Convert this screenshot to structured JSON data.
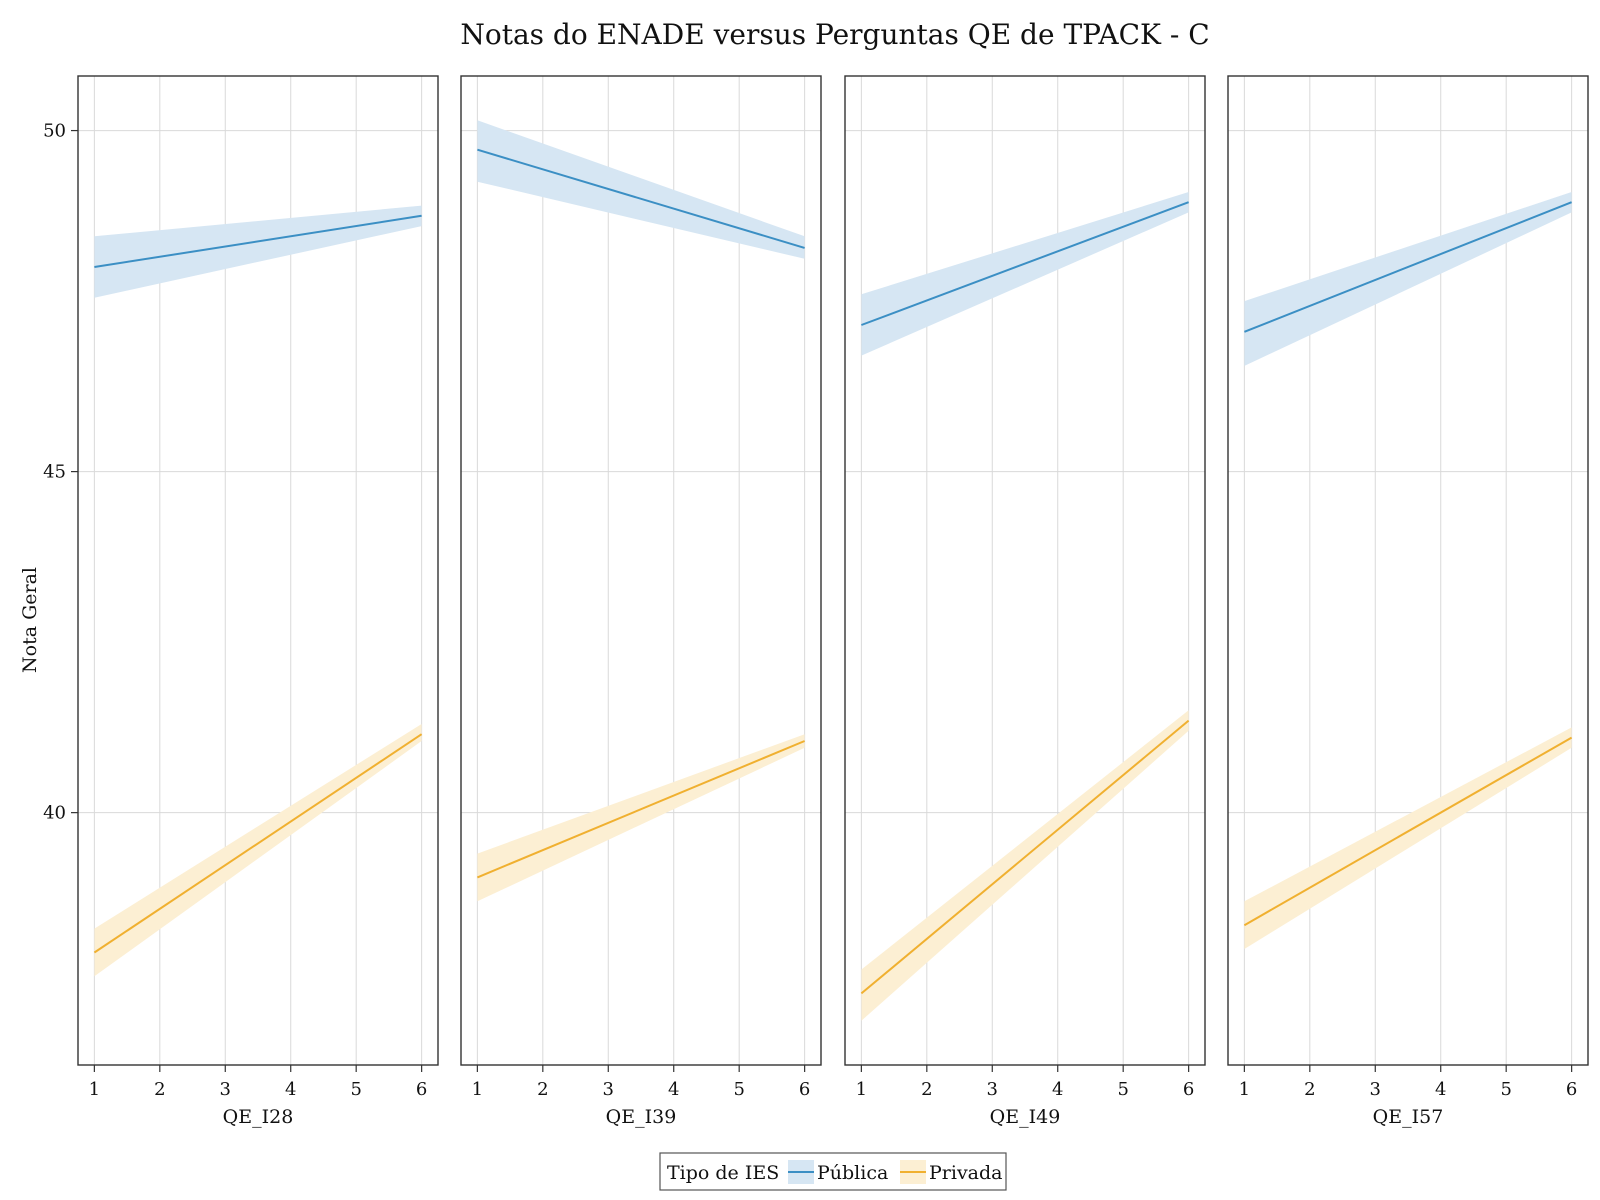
{
  "chart_data": {
    "type": "line",
    "title": "Notas do ENADE versus Perguntas QE de TPACK - C",
    "ylabel": "Nota Geral",
    "ylim": [
      36.3,
      50.8
    ],
    "yticks": [
      40,
      45,
      50
    ],
    "xlim": [
      0.75,
      6.25
    ],
    "xticks": [
      1,
      2,
      3,
      4,
      5,
      6
    ],
    "grid": true,
    "legend": {
      "title": "Tipo de IES",
      "placement": "bottom-center",
      "entries": [
        "Pública",
        "Privada"
      ]
    },
    "colors": {
      "Pública": "#3b8fc4",
      "Privada": "#f0b030"
    },
    "band_colors": {
      "Pública": "#d6e6f3",
      "Privada": "#fcefd3"
    },
    "panels": [
      {
        "xlabel": "QE_I28",
        "series": [
          {
            "name": "Pública",
            "x": [
              1,
              6
            ],
            "y": [
              48.0,
              48.75
            ],
            "lower": [
              47.55,
              48.6
            ],
            "upper": [
              48.45,
              48.9
            ]
          },
          {
            "name": "Privada",
            "x": [
              1,
              6
            ],
            "y": [
              37.95,
              41.15
            ],
            "lower": [
              37.6,
              41.05
            ],
            "upper": [
              38.3,
              41.3
            ]
          }
        ]
      },
      {
        "xlabel": "QE_I39",
        "series": [
          {
            "name": "Pública",
            "x": [
              1,
              6
            ],
            "y": [
              49.72,
              48.28
            ],
            "lower": [
              49.25,
              48.12
            ],
            "upper": [
              50.15,
              48.45
            ]
          },
          {
            "name": "Privada",
            "x": [
              1,
              6
            ],
            "y": [
              39.05,
              41.05
            ],
            "lower": [
              38.7,
              40.95
            ],
            "upper": [
              39.4,
              41.15
            ]
          }
        ]
      },
      {
        "xlabel": "QE_I49",
        "series": [
          {
            "name": "Pública",
            "x": [
              1,
              6
            ],
            "y": [
              47.15,
              48.95
            ],
            "lower": [
              46.7,
              48.8
            ],
            "upper": [
              47.6,
              49.1
            ]
          },
          {
            "name": "Privada",
            "x": [
              1,
              6
            ],
            "y": [
              37.35,
              41.35
            ],
            "lower": [
              36.95,
              41.2
            ],
            "upper": [
              37.7,
              41.5
            ]
          }
        ]
      },
      {
        "xlabel": "QE_I57",
        "series": [
          {
            "name": "Pública",
            "x": [
              1,
              6
            ],
            "y": [
              47.05,
              48.95
            ],
            "lower": [
              46.55,
              48.8
            ],
            "upper": [
              47.5,
              49.1
            ]
          },
          {
            "name": "Privada",
            "x": [
              1,
              6
            ],
            "y": [
              38.35,
              41.1
            ],
            "lower": [
              38.0,
              40.95
            ],
            "upper": [
              38.7,
              41.25
            ]
          }
        ]
      }
    ]
  }
}
